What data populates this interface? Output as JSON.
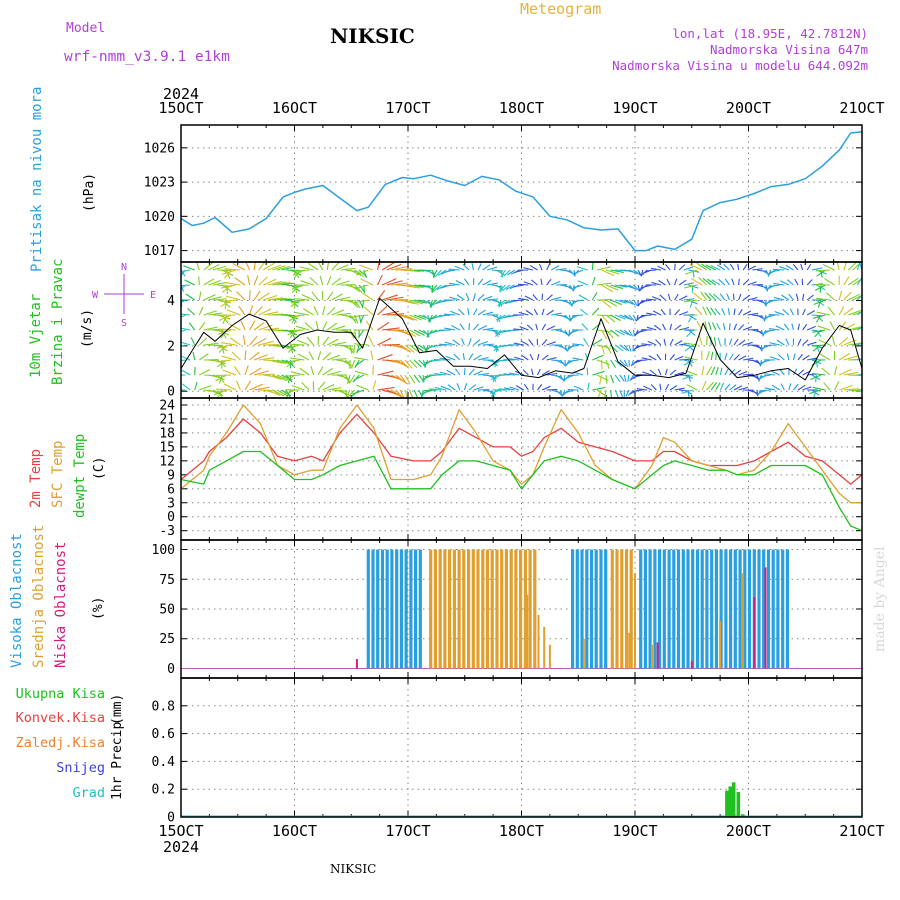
{
  "header": {
    "model_label": "Model",
    "model_name": "wrf-nmm_v3.9.1 e1km",
    "station": "NIKSIC",
    "meteogram": "Meteogram",
    "lonlat": "lon,lat (18.95E, 42.7812N)",
    "elev": "Nadmorska Visina 647m",
    "elev_model": "Nadmorska Visina u modelu 644.092m"
  },
  "footer": {
    "station": "NIKSIC",
    "credit": "made by Angel"
  },
  "time_axis": {
    "year": "2024",
    "labels": [
      "15OCT",
      "16OCT",
      "17OCT",
      "18OCT",
      "19OCT",
      "20OCT",
      "21OCT"
    ]
  },
  "panels": {
    "pressure": {
      "ylabel": "Pritisak na nivou mora",
      "unit": "(hPa)"
    },
    "wind": {
      "ylabel_1": "10m Vjetar",
      "ylabel_2": "Brzina i Pravac",
      "unit": "(m/s)",
      "compass": {
        "n": "N",
        "s": "S",
        "e": "E",
        "w": "W"
      }
    },
    "temp": {
      "ylabel_1": "2m Temp",
      "ylabel_2": "SFC Temp",
      "ylabel_3": "dewpt Temp",
      "unit": "(C)"
    },
    "cloud": {
      "ylabel_1": "Visoka Oblacnost",
      "ylabel_2": "Srednja Oblacnost",
      "ylabel_3": "Niska Oblacnost",
      "unit": "(%)"
    },
    "precip": {
      "legend": [
        "Ukupna Kisa",
        "Konvek.Kisa",
        "Zaledj.Kisa",
        "Snijeg",
        "Grad"
      ],
      "ylabel": "1hr Precip",
      "unit": "(mm)"
    }
  },
  "colors": {
    "pressure": "#2aa0e0",
    "wind_speed": "#000000",
    "temp2m": "#e84040",
    "sfc": "#e0a030",
    "dew": "#20c020",
    "cloud_high": "#2a9fe0",
    "cloud_mid": "#e0a030",
    "cloud_low": "#d02080",
    "rain": "#20c020",
    "conv": "#e84040",
    "freezing": "#f08030",
    "snow": "#4040e0",
    "hail": "#20c0c0",
    "purple": "#b040d8"
  },
  "chart_data": [
    {
      "type": "line",
      "name": "pressure",
      "x_range": [
        0,
        6
      ],
      "ylim": [
        1016,
        1028
      ],
      "yticks": [
        1017,
        1020,
        1023,
        1026
      ],
      "x": [
        0,
        0.1,
        0.2,
        0.3,
        0.45,
        0.6,
        0.75,
        0.9,
        1.0,
        1.1,
        1.25,
        1.4,
        1.55,
        1.65,
        1.8,
        1.95,
        2.05,
        2.2,
        2.35,
        2.5,
        2.65,
        2.8,
        2.95,
        3.1,
        3.25,
        3.4,
        3.55,
        3.7,
        3.85,
        4.0,
        4.1,
        4.2,
        4.35,
        4.5,
        4.6,
        4.75,
        4.9,
        5.05,
        5.2,
        5.35,
        5.5,
        5.65,
        5.8,
        5.9,
        6.0
      ],
      "y": [
        1019.8,
        1019.2,
        1019.4,
        1019.9,
        1018.6,
        1018.9,
        1019.8,
        1021.7,
        1022.1,
        1022.4,
        1022.7,
        1021.6,
        1020.5,
        1020.8,
        1022.8,
        1023.4,
        1023.3,
        1023.6,
        1023.1,
        1022.7,
        1023.5,
        1023.2,
        1022.2,
        1021.7,
        1020.0,
        1019.7,
        1019.0,
        1018.8,
        1018.9,
        1017.0,
        1017.0,
        1017.4,
        1017.1,
        1018.0,
        1020.5,
        1021.2,
        1021.5,
        1022.0,
        1022.6,
        1022.8,
        1023.3,
        1024.4,
        1025.8,
        1027.3,
        1027.4
      ]
    },
    {
      "type": "line",
      "name": "wind_speed",
      "x_range": [
        0,
        6
      ],
      "ylim": [
        -0.3,
        5.7
      ],
      "yticks": [
        0,
        2,
        4
      ],
      "x": [
        0,
        0.1,
        0.2,
        0.3,
        0.45,
        0.6,
        0.75,
        0.9,
        1.05,
        1.2,
        1.35,
        1.5,
        1.6,
        1.75,
        1.95,
        2.1,
        2.25,
        2.4,
        2.55,
        2.7,
        2.85,
        3.0,
        3.15,
        3.3,
        3.45,
        3.55,
        3.7,
        3.85,
        4.0,
        4.15,
        4.3,
        4.45,
        4.6,
        4.75,
        4.9,
        5.05,
        5.2,
        5.35,
        5.5,
        5.65,
        5.8,
        5.9,
        6.0
      ],
      "y": [
        1.0,
        1.8,
        2.6,
        2.2,
        2.9,
        3.4,
        3.1,
        1.9,
        2.5,
        2.7,
        2.6,
        2.6,
        1.9,
        4.1,
        3.2,
        1.7,
        1.8,
        1.1,
        1.1,
        1.0,
        1.6,
        0.7,
        0.6,
        0.9,
        0.8,
        1.0,
        3.2,
        1.3,
        0.7,
        0.7,
        0.6,
        0.8,
        3.0,
        1.4,
        0.6,
        0.7,
        0.9,
        1.0,
        0.5,
        1.9,
        2.9,
        2.7,
        1.0
      ]
    },
    {
      "type": "line",
      "name": "temperature",
      "x_range": [
        0,
        6
      ],
      "ylim": [
        -5,
        25.5
      ],
      "yticks": [
        -3,
        0,
        3,
        6,
        9,
        12,
        15,
        18,
        21,
        24
      ],
      "x": [
        0,
        0.2,
        0.25,
        0.4,
        0.55,
        0.7,
        0.85,
        1.0,
        1.15,
        1.25,
        1.4,
        1.55,
        1.7,
        1.85,
        2.05,
        2.2,
        2.3,
        2.45,
        2.6,
        2.75,
        2.9,
        3.0,
        3.1,
        3.2,
        3.35,
        3.5,
        3.65,
        3.8,
        4.0,
        4.15,
        4.25,
        4.35,
        4.5,
        4.65,
        4.8,
        4.9,
        5.05,
        5.2,
        5.35,
        5.5,
        5.65,
        5.8,
        5.9,
        6.0
      ],
      "series": [
        {
          "name": "2m Temp",
          "values": [
            8,
            12,
            14,
            17,
            21,
            18,
            13,
            12,
            13,
            12,
            18,
            22,
            18,
            13,
            12,
            12,
            14,
            19,
            17,
            15,
            15,
            13,
            14,
            17,
            19,
            16,
            15,
            14,
            12,
            12,
            14,
            14,
            12,
            11,
            11,
            11,
            12,
            14,
            16,
            13,
            12,
            9,
            7,
            9
          ]
        },
        {
          "name": "SFC Temp",
          "values": [
            6,
            10,
            13,
            18,
            24,
            20,
            11,
            9,
            10,
            10,
            19,
            24,
            19,
            8,
            8,
            9,
            13,
            23,
            18,
            12,
            10,
            7,
            9,
            15,
            23,
            18,
            11,
            8,
            6,
            11,
            17,
            16,
            12,
            11,
            10,
            9,
            10,
            14,
            20,
            15,
            10,
            5,
            3,
            3
          ]
        },
        {
          "name": "dewpt Temp",
          "values": [
            8,
            7,
            10,
            12,
            14,
            14,
            11,
            8,
            8,
            9,
            11,
            12,
            13,
            6,
            6,
            6,
            9,
            12,
            12,
            11,
            10,
            6,
            9,
            12,
            13,
            12,
            10,
            8,
            6,
            9,
            11,
            12,
            11,
            10,
            10,
            9,
            9,
            11,
            11,
            11,
            9,
            2,
            -2,
            -3
          ]
        }
      ]
    },
    {
      "type": "bar",
      "name": "cloud_cover",
      "x_range": [
        0,
        6
      ],
      "ylim": [
        -8,
        108
      ],
      "yticks": [
        0,
        25,
        50,
        75,
        100
      ],
      "series": [
        {
          "name": "Visoka Oblacnost",
          "ranges": [
            [
              1.65,
              2.15,
              100
            ],
            [
              3.45,
              3.78,
              100
            ],
            [
              4.05,
              5.35,
              100
            ]
          ]
        },
        {
          "name": "Srednja Oblacnost",
          "ranges": [
            [
              2.2,
              3.15,
              100
            ],
            [
              3.8,
              3.98,
              100
            ]
          ],
          "bars": [
            [
              3.05,
              62
            ],
            [
              3.15,
              45
            ],
            [
              3.2,
              35
            ],
            [
              3.25,
              20
            ],
            [
              3.55,
              25
            ],
            [
              3.95,
              30
            ],
            [
              4.0,
              80
            ],
            [
              4.15,
              20
            ],
            [
              4.75,
              40
            ],
            [
              4.95,
              80
            ]
          ]
        },
        {
          "name": "Niska Oblacnost",
          "bars": [
            [
              1.55,
              8
            ],
            [
              4.2,
              22
            ],
            [
              4.5,
              6
            ],
            [
              5.05,
              60
            ],
            [
              5.15,
              85
            ]
          ]
        }
      ]
    },
    {
      "type": "bar",
      "name": "precip",
      "x_range": [
        0,
        6
      ],
      "ylim": [
        0,
        1.0
      ],
      "yticks": [
        0,
        0.2,
        0.4,
        0.6,
        0.8
      ],
      "series": [
        {
          "name": "Ukupna Kisa",
          "x": [
            4.81,
            4.84,
            4.87,
            4.91,
            4.95
          ],
          "values": [
            0.19,
            0.22,
            0.25,
            0.18,
            0.02
          ]
        }
      ]
    }
  ]
}
